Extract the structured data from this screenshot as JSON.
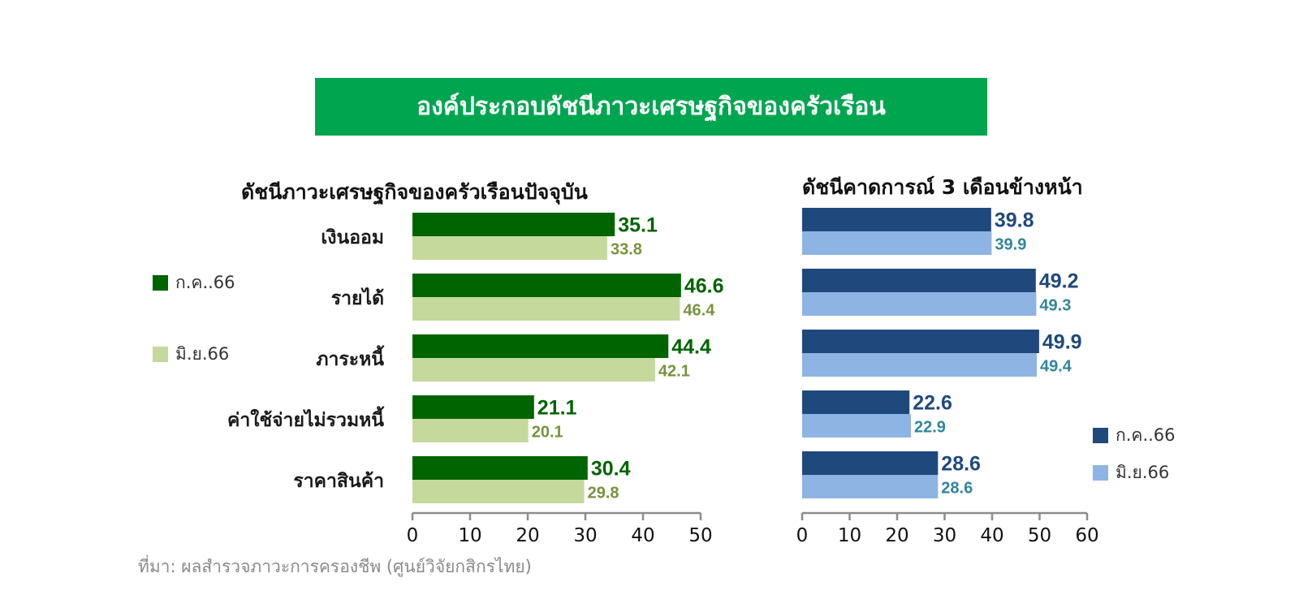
{
  "banner": {
    "title": "องค์ประกอบดัชนีภาวะเศรษฐกิจของครัวเรือน"
  },
  "source": "ที่มา: ผลสำรวจภาวะการครองชีพ (ศูนย์วิจัยกสิกรไทย)",
  "colors": {
    "banner": "#00a550",
    "left_series1": "#006400",
    "left_series2": "#c5d99c",
    "left_label1": "#006400",
    "left_label2": "#77933c",
    "right_series1": "#1f497d",
    "right_series2": "#8eb4e3",
    "right_label1": "#1f497d",
    "right_label2": "#31859c"
  },
  "chart_data": [
    {
      "type": "bar",
      "orientation": "horizontal",
      "title": "ดัชนีภาวะเศรษฐกิจของครัวเรือนปัจจุบัน",
      "categories": [
        "เงินออม",
        "รายได้",
        "ภาระหนี้",
        "ค่าใช้จ่ายไม่รวมหนี้",
        "ราคาสินค้า"
      ],
      "series": [
        {
          "name": "ก.ค..66",
          "values": [
            35.1,
            46.6,
            44.4,
            21.1,
            30.4
          ]
        },
        {
          "name": "มิ.ย.66",
          "values": [
            33.8,
            46.4,
            42.1,
            20.1,
            29.8
          ]
        }
      ],
      "xlim": [
        0,
        50
      ],
      "xticks": [
        0,
        10,
        20,
        30,
        40,
        50
      ],
      "data_labels": true,
      "grid": false,
      "legend": "left"
    },
    {
      "type": "bar",
      "orientation": "horizontal",
      "title": "ดัชนีคาดการณ์ 3 เดือนข้างหน้า",
      "categories": [
        "เงินออม",
        "รายได้",
        "ภาระหนี้",
        "ค่าใช้จ่ายไม่รวมหนี้",
        "ราคาสินค้า"
      ],
      "series": [
        {
          "name": "ก.ค..66",
          "values": [
            39.8,
            49.2,
            49.9,
            22.6,
            28.6
          ]
        },
        {
          "name": "มิ.ย.66",
          "values": [
            39.9,
            49.3,
            49.4,
            22.9,
            28.6
          ]
        }
      ],
      "xlim": [
        0,
        60
      ],
      "xticks": [
        0,
        10,
        20,
        30,
        40,
        50,
        60
      ],
      "data_labels": true,
      "grid": false,
      "legend": "bottom-right"
    }
  ]
}
